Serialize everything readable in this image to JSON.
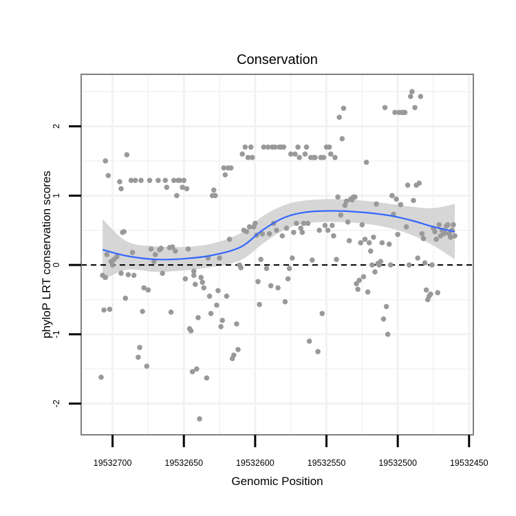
{
  "chart_data": {
    "type": "scatter",
    "title": "Conservation",
    "xlabel": "Genomic Position",
    "ylabel": "phyloP LRT conservation scores",
    "x_reversed": true,
    "xlim": [
      19532447,
      19532722
    ],
    "ylim": [
      -2.45,
      2.75
    ],
    "x_ticks": [
      19532700,
      19532650,
      19532600,
      19532550,
      19532500,
      19532450
    ],
    "x_tick_labels": [
      "19532700",
      "19532650",
      "19532600",
      "19532550",
      "19532500",
      "19532450"
    ],
    "y_ticks": [
      -2,
      -1,
      0,
      1,
      2
    ],
    "y_tick_labels": [
      "-2",
      "-1",
      "0",
      "1",
      "2"
    ],
    "reference_line": {
      "y": 0,
      "style": "dashed",
      "color": "#000000"
    },
    "colors": {
      "points": "#999999",
      "smooth_line": "#3366ff",
      "confidence_band": "#cccccc",
      "panel_border": "#7f7f7f",
      "grid": "#f2f2f2"
    },
    "smooth": {
      "method": "loess",
      "x": [
        19532707,
        19532690,
        19532670,
        19532650,
        19532630,
        19532610,
        19532595,
        19532580,
        19532565,
        19532545,
        19532525,
        19532505,
        19532490,
        19532475,
        19532460
      ],
      "y": [
        0.22,
        0.13,
        0.08,
        0.09,
        0.14,
        0.26,
        0.5,
        0.68,
        0.76,
        0.78,
        0.76,
        0.71,
        0.64,
        0.55,
        0.48
      ],
      "lower": [
        -0.22,
        -0.07,
        -0.1,
        -0.08,
        -0.03,
        0.07,
        0.3,
        0.5,
        0.6,
        0.62,
        0.6,
        0.53,
        0.43,
        0.28,
        0.08
      ],
      "upper": [
        0.66,
        0.34,
        0.27,
        0.26,
        0.31,
        0.46,
        0.7,
        0.86,
        0.93,
        0.95,
        0.93,
        0.88,
        0.84,
        0.82,
        0.88
      ]
    },
    "points": {
      "x": [
        19532708,
        19532707,
        19532706,
        19532705,
        19532705,
        19532704,
        19532703,
        19532702,
        19532701,
        19532700,
        19532699,
        19532697,
        19532695,
        19532694,
        19532694,
        19532693,
        19532692,
        19532691,
        19532690,
        19532689,
        19532687,
        19532686,
        19532685,
        19532684,
        19532682,
        19532681,
        19532680,
        19532679,
        19532678,
        19532676,
        19532675,
        19532674,
        19532673,
        19532671,
        19532670,
        19532668,
        19532667,
        19532666,
        19532665,
        19532663,
        19532662,
        19532660,
        19532659,
        19532658,
        19532657,
        19532656,
        19532655,
        19532654,
        19532653,
        19532651,
        19532650,
        19532649,
        19532648,
        19532647,
        19532646,
        19532645,
        19532644,
        19532643,
        19532643,
        19532642,
        19532641,
        19532640,
        19532639,
        19532638,
        19532637,
        19532636,
        19532634,
        19532633,
        19532632,
        19532631,
        19532630,
        19532629,
        19532628,
        19532627,
        19532626,
        19532625,
        19532624,
        19532623,
        19532622,
        19532621,
        19532620,
        19532619,
        19532618,
        19532617,
        19532616,
        19532615,
        19532613,
        19532612,
        19532611,
        19532610,
        19532609,
        19532608,
        19532607,
        19532606,
        19532605,
        19532604,
        19532603,
        19532602,
        19532601,
        19532600,
        19532599,
        19532598,
        19532597,
        19532596,
        19532595,
        19532594,
        19532592,
        19532591,
        19532590,
        19532589,
        19532588,
        19532587,
        19532586,
        19532585,
        19532584,
        19532583,
        19532582,
        19532581,
        19532580,
        19532579,
        19532578,
        19532577,
        19532576,
        19532575,
        19532574,
        19532573,
        19532572,
        19532571,
        19532570,
        19532569,
        19532568,
        19532567,
        19532566,
        19532565,
        19532564,
        19532563,
        19532562,
        19532561,
        19532560,
        19532559,
        19532558,
        19532556,
        19532555,
        19532554,
        19532553,
        19532552,
        19532551,
        19532550,
        19532549,
        19532548,
        19532547,
        19532546,
        19532545,
        19532544,
        19532543,
        19532542,
        19532541,
        19532540,
        19532539,
        19532538,
        19532537,
        19532536,
        19532535,
        19532534,
        19532533,
        19532532,
        19532531,
        19532530,
        19532529,
        19532528,
        19532527,
        19532526,
        19532525,
        19532524,
        19532523,
        19532522,
        19532521,
        19532520,
        19532519,
        19532518,
        19532517,
        19532516,
        19532515,
        19532514,
        19532513,
        19532512,
        19532511,
        19532510,
        19532509,
        19532508,
        19532507,
        19532506,
        19532505,
        19532504,
        19532503,
        19532502,
        19532501,
        19532500,
        19532499,
        19532498,
        19532497,
        19532496,
        19532495,
        19532494,
        19532493,
        19532492,
        19532491,
        19532490,
        19532489,
        19532488,
        19532487,
        19532486,
        19532485,
        19532484,
        19532483,
        19532482,
        19532481,
        19532480,
        19532479,
        19532478,
        19532477,
        19532476,
        19532475,
        19532474,
        19532473,
        19532472,
        19532471,
        19532470,
        19532469,
        19532468,
        19532467,
        19532466,
        19532465,
        19532464,
        19532463,
        19532462,
        19532461,
        19532460
      ],
      "y": [
        -1.62,
        -0.15,
        -0.65,
        1.5,
        -0.18,
        0.15,
        1.29,
        -0.64,
        0.05,
        0.0,
        0.08,
        0.12,
        1.2,
        1.1,
        -0.12,
        0.47,
        0.48,
        -0.48,
        1.59,
        -0.14,
        1.22,
        0.18,
        -0.15,
        1.22,
        -1.33,
        -1.19,
        1.22,
        -0.67,
        -0.33,
        -1.46,
        -0.36,
        1.22,
        0.23,
        0.05,
        0.15,
        1.22,
        0.22,
        0.24,
        -0.12,
        1.22,
        1.12,
        0.25,
        -0.68,
        0.26,
        1.22,
        0.2,
        1.0,
        1.22,
        1.22,
        1.12,
        1.22,
        -0.2,
        1.1,
        0.23,
        -0.92,
        -0.95,
        -1.54,
        -0.15,
        -0.09,
        -0.28,
        -1.5,
        -0.76,
        -2.22,
        -0.18,
        -0.25,
        -0.33,
        -1.63,
        0.1,
        -0.45,
        -0.7,
        1.0,
        1.08,
        1.0,
        -0.58,
        -0.37,
        0.1,
        -0.89,
        -0.8,
        1.4,
        1.3,
        -0.45,
        1.4,
        0.37,
        1.4,
        -1.35,
        -1.3,
        -0.85,
        -1.22,
        0.0,
        -0.04,
        1.6,
        0.5,
        1.7,
        0.48,
        1.55,
        0.55,
        1.7,
        1.55,
        0.55,
        0.6,
        0.43,
        -0.24,
        -0.57,
        0.08,
        0.45,
        1.7,
        -0.05,
        1.7,
        0.45,
        -0.3,
        1.7,
        0.6,
        1.7,
        0.5,
        -0.33,
        1.7,
        1.7,
        0.42,
        1.7,
        -0.53,
        0.53,
        -0.2,
        -0.05,
        1.6,
        0.1,
        0.47,
        1.6,
        0.6,
        1.7,
        1.55,
        0.53,
        0.47,
        0.6,
        1.6,
        1.7,
        0.6,
        -1.1,
        1.55,
        0.07,
        1.55,
        1.55,
        -1.25,
        0.5,
        1.55,
        -0.7,
        1.55,
        0.57,
        1.7,
        0.5,
        1.7,
        1.6,
        0.57,
        0.42,
        1.55,
        0.08,
        0.98,
        2.13,
        0.72,
        1.82,
        2.26,
        0.86,
        0.92,
        0.62,
        0.35,
        0.95,
        0.94,
        0.98,
        0.98,
        -0.27,
        -0.35,
        -0.22,
        0.32,
        0.58,
        -0.17,
        0.37,
        1.48,
        -0.39,
        0.32,
        0.2,
        0.0,
        0.4,
        -0.1,
        0.88,
        0.02,
        0.0,
        0.05,
        0.32,
        -0.78,
        2.27,
        -0.6,
        -1.0,
        0.3,
        0.0,
        1.0,
        0.73,
        2.2,
        0.95,
        0.44,
        2.2,
        0.87,
        2.2,
        2.2,
        2.2,
        0.55,
        1.15,
        0.0,
        2.43,
        2.5,
        0.93,
        2.27,
        1.15,
        0.1,
        1.18,
        2.43,
        0.45,
        0.38,
        0.03,
        -0.36,
        -0.5,
        -0.45,
        -0.42,
        0.0,
        0.53,
        0.48,
        0.37,
        -0.4,
        0.58,
        0.42,
        0.5,
        0.45,
        0.46,
        0.56,
        0.58,
        0.45,
        0.4,
        0.5,
        0.58,
        0.42
      ]
    }
  }
}
